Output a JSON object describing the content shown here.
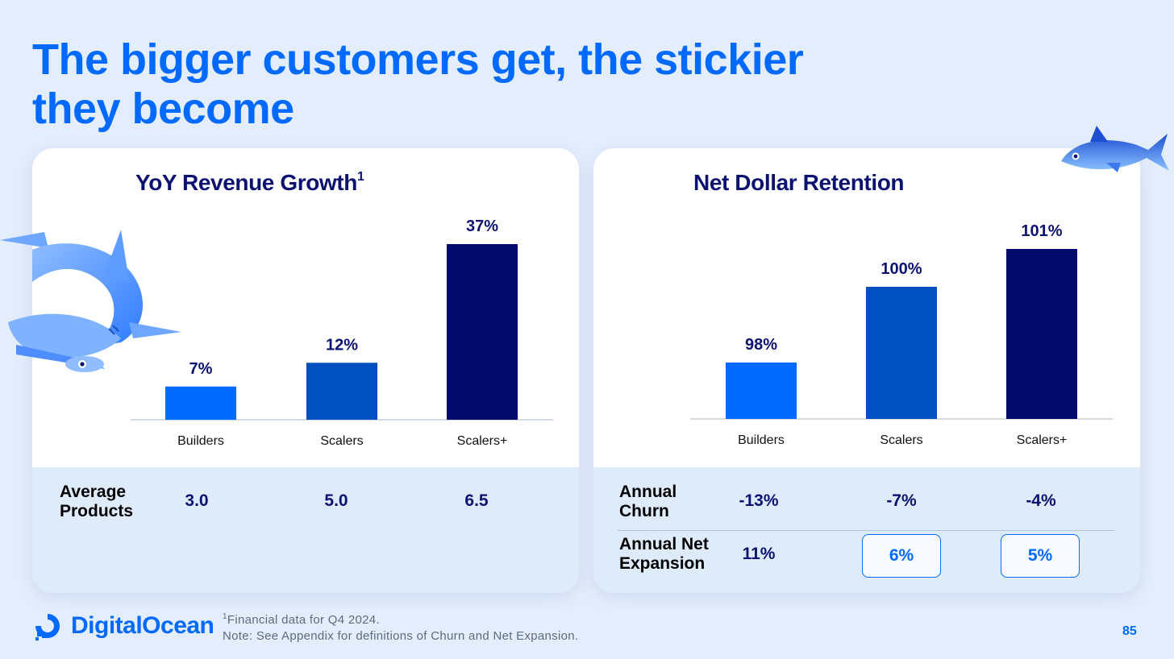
{
  "title_line1": "The bigger customers get, the stickier",
  "title_line2": "they become",
  "chart_data": [
    {
      "type": "bar",
      "title": "YoY Revenue Growth",
      "title_superscript": "1",
      "categories": [
        "Builders",
        "Scalers",
        "Scalers+"
      ],
      "values": [
        7,
        12,
        37
      ],
      "value_labels": [
        "7%",
        "12%",
        "37%"
      ],
      "colors": [
        "#0069FF",
        "#0050C0",
        "#020A6B"
      ],
      "unit": "%"
    },
    {
      "type": "bar",
      "title": "Net Dollar Retention",
      "categories": [
        "Builders",
        "Scalers",
        "Scalers+"
      ],
      "values": [
        98,
        100,
        101
      ],
      "value_labels": [
        "98%",
        "100%",
        "101%"
      ],
      "colors": [
        "#0069FF",
        "#0050C0",
        "#020A6B"
      ],
      "unit": "%"
    }
  ],
  "left_table": {
    "label_line1": "Average",
    "label_line2": "Products",
    "values": [
      "3.0",
      "5.0",
      "6.5"
    ]
  },
  "right_table": {
    "churn_label_line1": "Annual",
    "churn_label_line2": "Churn",
    "churn_values": [
      "-13%",
      "-7%",
      "-4%"
    ],
    "expansion_label_line1": "Annual Net",
    "expansion_label_line2": "Expansion",
    "expansion_values": [
      "11%",
      "6%",
      "5%"
    ]
  },
  "brand": {
    "logo_text": "DigitalOcean",
    "accent": "#0069FF",
    "navy": "#0B1270"
  },
  "footnote": {
    "marker": "1",
    "line1": "Financial data for Q4 2024.",
    "line2": "Note: See Appendix for definitions of Churn and Net Expansion."
  },
  "page_number": "85",
  "icons": [
    "hammerhead-shark-icon",
    "tuna-fish-icon",
    "digitalocean-logo-icon"
  ]
}
